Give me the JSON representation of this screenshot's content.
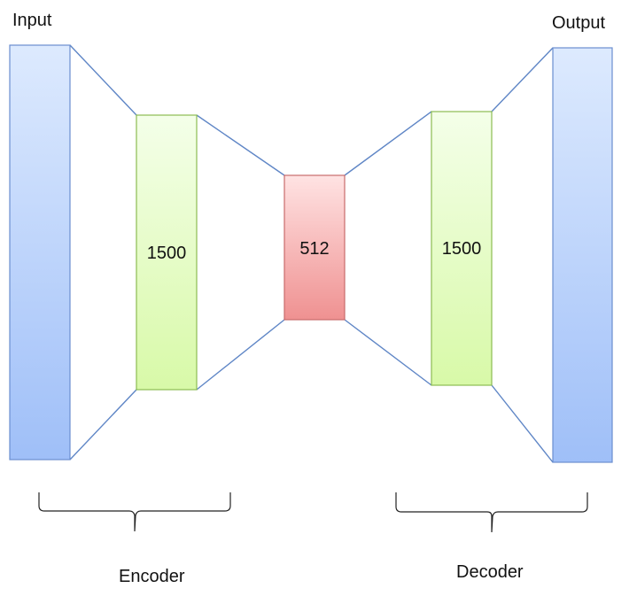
{
  "labels": {
    "input": "Input",
    "output": "Output",
    "encoder": "Encoder",
    "decoder": "Decoder"
  },
  "layers": {
    "encoder_hidden": "1500",
    "bottleneck": "512",
    "decoder_hidden": "1500"
  },
  "colors": {
    "outer_layer_top": "#ddeafe",
    "outer_layer_bottom": "#9fbff8",
    "outer_layer_stroke": "#6a8ecf",
    "hidden_layer_top": "#f4ffe9",
    "hidden_layer_bottom": "#d8f9a8",
    "hidden_layer_stroke": "#8cbc52",
    "bottleneck_top": "#ffe3e3",
    "bottleneck_bottom": "#ef9191",
    "bottleneck_stroke": "#c96c6c",
    "connector": "#5f86c6",
    "brace": "#222222"
  }
}
